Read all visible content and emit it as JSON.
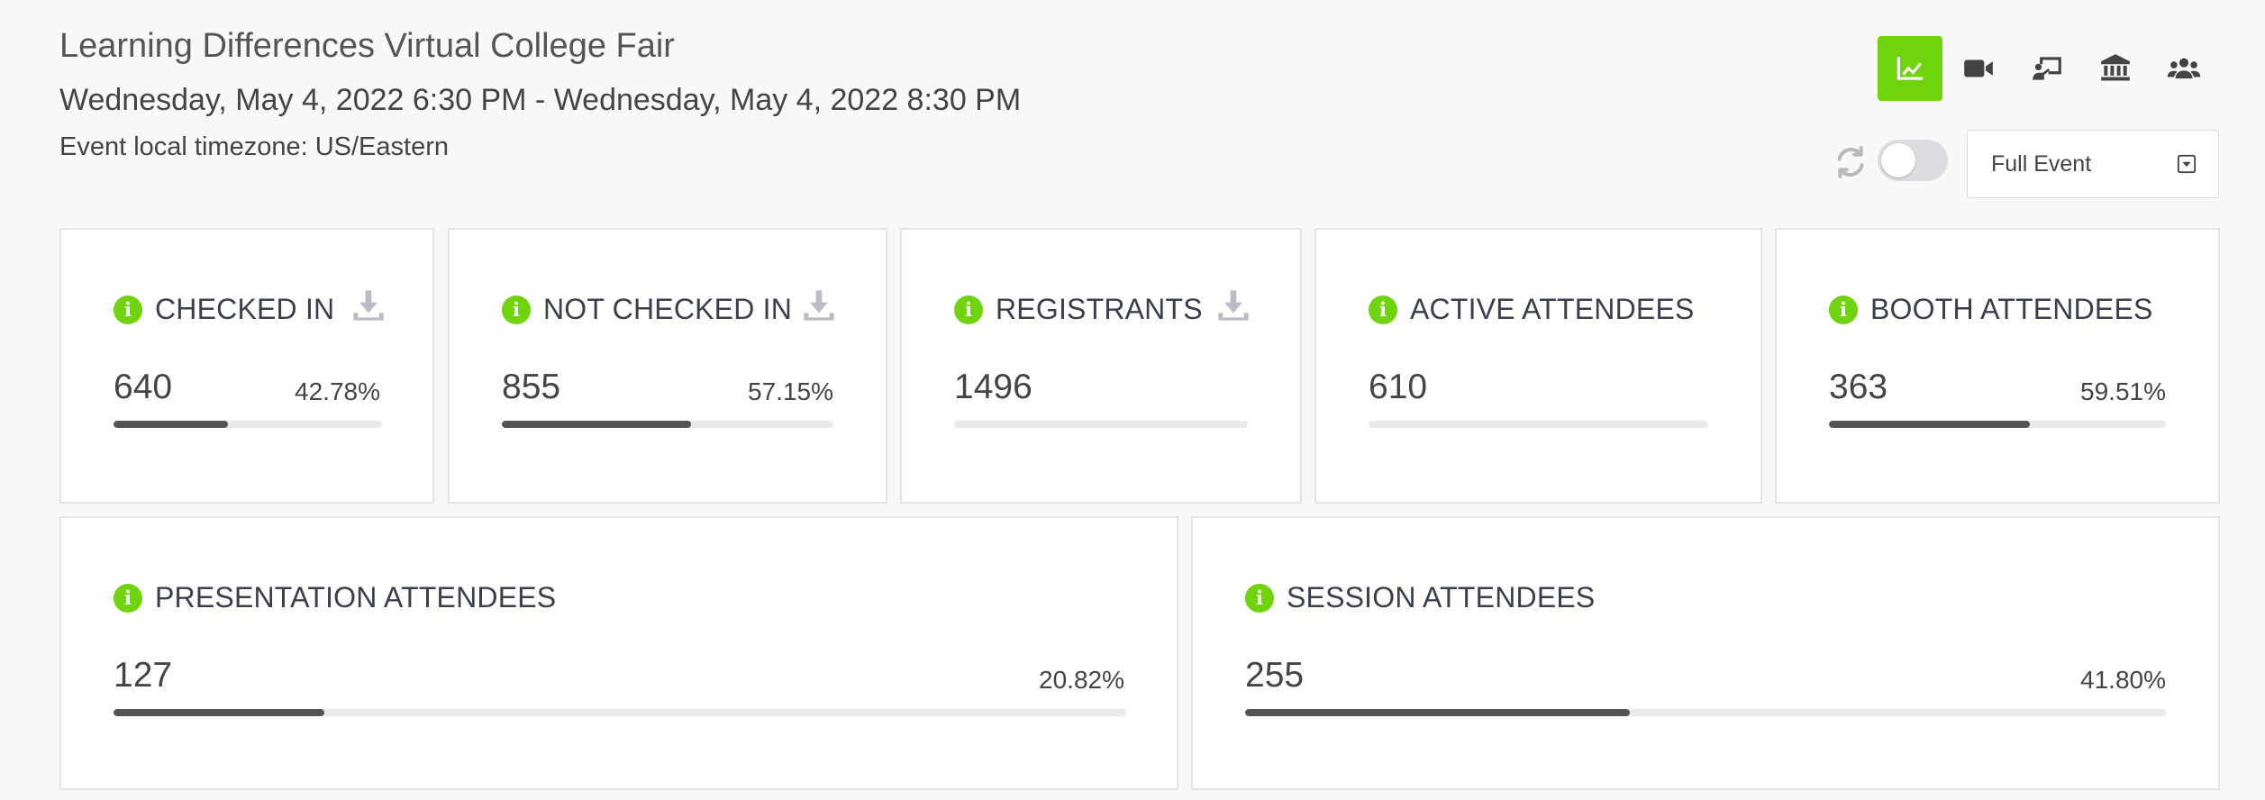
{
  "event": {
    "title": "Learning Differences Virtual College Fair",
    "dates": "Wednesday, May 4, 2022 6:30 PM - Wednesday, May 4, 2022 8:30 PM",
    "timezone": "Event local timezone: US/Eastern"
  },
  "toolbar": {
    "views": [
      {
        "icon": "chart-line-icon",
        "active": true
      },
      {
        "icon": "video-icon",
        "active": false
      },
      {
        "icon": "presentation-icon",
        "active": false
      },
      {
        "icon": "institution-icon",
        "active": false
      },
      {
        "icon": "users-icon",
        "active": false
      }
    ],
    "auto_refresh_on": false,
    "range_select": {
      "value": "Full Event"
    }
  },
  "colors": {
    "accent": "#6fd40b",
    "bar": "#535353",
    "track": "#e9e9ed"
  },
  "stats": {
    "checked_in": {
      "label": "CHECKED IN",
      "value": "640",
      "percent": "42.78%",
      "fraction": 0.4278
    },
    "not_checked_in": {
      "label": "NOT CHECKED IN",
      "value": "855",
      "percent": "57.15%",
      "fraction": 0.5715
    },
    "registrants": {
      "label": "REGISTRANTS",
      "value": "1496"
    },
    "active_attendees": {
      "label": "ACTIVE ATTENDEES",
      "value": "610"
    },
    "booth_attendees": {
      "label": "BOOTH ATTENDEES",
      "value": "363",
      "percent": "59.51%",
      "fraction": 0.5951
    },
    "presentation_attendees": {
      "label": "PRESENTATION ATTENDEES",
      "value": "127",
      "percent": "20.82%",
      "fraction": 0.2082
    },
    "session_attendees": {
      "label": "SESSION ATTENDEES",
      "value": "255",
      "percent": "41.80%",
      "fraction": 0.418
    }
  }
}
